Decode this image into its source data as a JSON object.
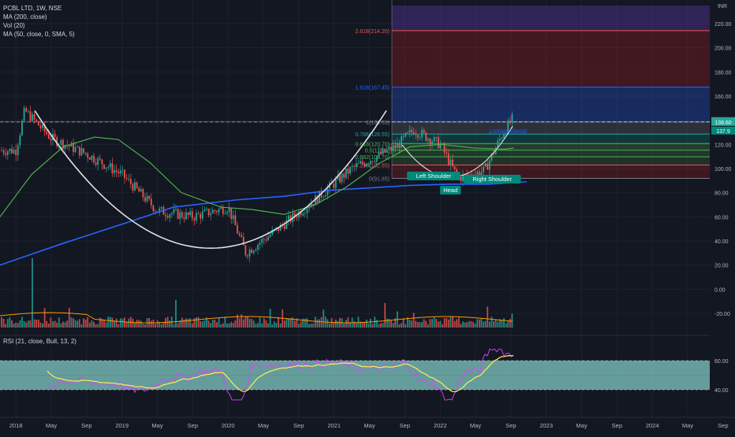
{
  "header": {
    "symbol_line": "PCBL LTD, 1W, NSE",
    "ma200_label": "MA (200, close)",
    "vol_label": "Vol (20)",
    "ma50_label": "MA (50, close, 0, SMA, 5)",
    "currency": "INR"
  },
  "rsi_panel": {
    "label": "RSI (21, close, Bull, 13, 2)",
    "band_top": 60,
    "band_bottom": 40,
    "ticks": [
      "60.00",
      "40.00"
    ]
  },
  "colors": {
    "background": "#131722",
    "up": "#26a69a",
    "down": "#ef5350",
    "ma200": "#2962ff",
    "ma50": "#4caf50",
    "cup_arc": "#e0e0e0",
    "rsi_band": "#80cbc4",
    "rsi_line": "#e040fb",
    "rsi_signal": "#ffee58",
    "vol_ma": "#ff9800"
  },
  "price_axis_ticks": [
    "220.00",
    "200.00",
    "180.00",
    "160.00",
    "140.00",
    "120.00",
    "100.00",
    "80.00",
    "60.00",
    "40.00",
    "20.00",
    "0.00",
    "-20.00"
  ],
  "time_axis_labels": [
    "2018",
    "May",
    "Sep",
    "2019",
    "May",
    "Sep",
    "2020",
    "May",
    "Sep",
    "2021",
    "May",
    "Sep",
    "2022",
    "May",
    "Sep",
    "2023",
    "May",
    "Sep",
    "2024",
    "May",
    "Sep"
  ],
  "price_badges": {
    "last": "138.60",
    "ma": "137.9"
  },
  "fib_levels": [
    {
      "label": "2.618(214.20)",
      "value": 214.2,
      "color": "#ef5350"
    },
    {
      "label": "1.618(167.45)",
      "value": 167.45,
      "color": "#2962ff"
    },
    {
      "label": "1(138.55)",
      "value": 138.55,
      "color": "#787b86"
    },
    {
      "label": "0.786(128.55)",
      "value": 128.55,
      "color": "#26a69a"
    },
    {
      "label": "0.618(120.70)",
      "value": 120.7,
      "color": "#4caf50"
    },
    {
      "label": "0.5(115.2)",
      "value": 115.2,
      "color": "#4caf50"
    },
    {
      "label": "0.382(109.70)",
      "value": 109.7,
      "color": "#4caf50"
    },
    {
      "label": "0.236(102.85)",
      "value": 102.85,
      "color": "#ef5350"
    },
    {
      "label": "0(91.85)",
      "value": 91.85,
      "color": "#787b86"
    }
  ],
  "annotations": {
    "left_shoulder": "Left Shoulder",
    "head": "Head",
    "right_shoulder": "Right Shoulder",
    "neckline_note": "1.0000000000000"
  },
  "chart_data": {
    "type": "candlestick",
    "title": "PCBL LTD, 1W, NSE",
    "ylim": [
      -30,
      235
    ],
    "approx_close_path": [
      {
        "x": "2018-01",
        "y": 115
      },
      {
        "x": "2018-02",
        "y": 148
      },
      {
        "x": "2018-05",
        "y": 125
      },
      {
        "x": "2018-09",
        "y": 112
      },
      {
        "x": "2019-01",
        "y": 95
      },
      {
        "x": "2019-05",
        "y": 65
      },
      {
        "x": "2019-09",
        "y": 60
      },
      {
        "x": "2020-01",
        "y": 68
      },
      {
        "x": "2020-03",
        "y": 30
      },
      {
        "x": "2020-07",
        "y": 52
      },
      {
        "x": "2020-11",
        "y": 75
      },
      {
        "x": "2021-03",
        "y": 100
      },
      {
        "x": "2021-08",
        "y": 118
      },
      {
        "x": "2021-10",
        "y": 132
      },
      {
        "x": "2022-01",
        "y": 120
      },
      {
        "x": "2022-03",
        "y": 92
      },
      {
        "x": "2022-06",
        "y": 98
      },
      {
        "x": "2022-08",
        "y": 128
      },
      {
        "x": "2022-10",
        "y": 150
      },
      {
        "x": "2022-11",
        "y": 138.6
      }
    ]
  }
}
